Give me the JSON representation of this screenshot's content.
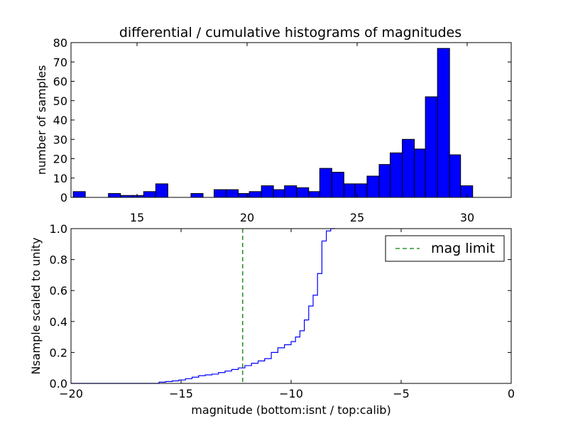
{
  "chart_data": [
    {
      "type": "bar",
      "title": "differential / cumulative histograms of magnitudes",
      "ylabel": "number of samples",
      "xlabel": "",
      "xlim": [
        12,
        32
      ],
      "ylim": [
        0,
        80
      ],
      "xticks": [
        "15",
        "20",
        "25",
        "30"
      ],
      "yticks": [
        "0",
        "10",
        "20",
        "30",
        "40",
        "50",
        "60",
        "70",
        "80"
      ],
      "bar_color": "#0000ff",
      "bins": [
        {
          "x0": 12.1,
          "x1": 12.65,
          "value": 3
        },
        {
          "x0": 13.7,
          "x1": 14.25,
          "value": 2
        },
        {
          "x0": 14.25,
          "x1": 14.8,
          "value": 1
        },
        {
          "x0": 14.8,
          "x1": 15.3,
          "value": 1
        },
        {
          "x0": 15.3,
          "x1": 15.85,
          "value": 3
        },
        {
          "x0": 15.85,
          "x1": 16.4,
          "value": 7
        },
        {
          "x0": 17.45,
          "x1": 18.0,
          "value": 2
        },
        {
          "x0": 18.5,
          "x1": 19.05,
          "value": 4
        },
        {
          "x0": 19.05,
          "x1": 19.6,
          "value": 4
        },
        {
          "x0": 19.6,
          "x1": 20.1,
          "value": 2
        },
        {
          "x0": 20.1,
          "x1": 20.65,
          "value": 3
        },
        {
          "x0": 20.65,
          "x1": 21.2,
          "value": 6
        },
        {
          "x0": 21.2,
          "x1": 21.7,
          "value": 4
        },
        {
          "x0": 21.7,
          "x1": 22.25,
          "value": 6
        },
        {
          "x0": 22.25,
          "x1": 22.8,
          "value": 5
        },
        {
          "x0": 22.8,
          "x1": 23.3,
          "value": 3
        },
        {
          "x0": 23.3,
          "x1": 23.85,
          "value": 15
        },
        {
          "x0": 23.85,
          "x1": 24.4,
          "value": 13
        },
        {
          "x0": 24.4,
          "x1": 24.9,
          "value": 7
        },
        {
          "x0": 24.9,
          "x1": 25.45,
          "value": 7
        },
        {
          "x0": 25.45,
          "x1": 26.0,
          "value": 11
        },
        {
          "x0": 26.0,
          "x1": 26.5,
          "value": 17
        },
        {
          "x0": 26.5,
          "x1": 27.05,
          "value": 23
        },
        {
          "x0": 27.05,
          "x1": 27.6,
          "value": 30
        },
        {
          "x0": 27.6,
          "x1": 28.1,
          "value": 25
        },
        {
          "x0": 28.1,
          "x1": 28.65,
          "value": 52
        },
        {
          "x0": 28.65,
          "x1": 29.2,
          "value": 77
        },
        {
          "x0": 29.2,
          "x1": 29.7,
          "value": 22
        },
        {
          "x0": 29.7,
          "x1": 30.25,
          "value": 6
        }
      ]
    },
    {
      "type": "line",
      "title": "",
      "xlabel": "magnitude (bottom:isnt / top:calib)",
      "ylabel": "Nsample scaled to unity",
      "xlim": [
        -20,
        0
      ],
      "ylim": [
        0.0,
        1.0
      ],
      "xticks": [
        "−20",
        "−15",
        "−10",
        "−5",
        "0"
      ],
      "yticks": [
        "0.0",
        "0.2",
        "0.4",
        "0.6",
        "0.8",
        "1.0"
      ],
      "legend": {
        "position": "top-right",
        "entries": [
          {
            "name": "mag limit",
            "style": "dashed",
            "color": "#008000"
          }
        ]
      },
      "mag_limit_x": -12.2,
      "step_color": "#0000ff",
      "series": [
        {
          "x": [
            -20,
            -16,
            -15.7,
            -15.4,
            -15.1,
            -14.8,
            -14.5,
            -14.2,
            -13.9,
            -13.6,
            -13.3,
            -13.0,
            -12.7,
            -12.4,
            -12.1,
            -11.8,
            -11.5,
            -11.2,
            -10.9,
            -10.6,
            -10.3,
            -10.0,
            -9.8,
            -9.6,
            -9.4,
            -9.2,
            -9.0,
            -8.8,
            -8.6,
            -8.4,
            -8.2,
            -8.0
          ],
          "y": [
            0.0,
            0.008,
            0.012,
            0.016,
            0.022,
            0.03,
            0.04,
            0.05,
            0.055,
            0.06,
            0.07,
            0.08,
            0.09,
            0.1,
            0.115,
            0.13,
            0.145,
            0.16,
            0.2,
            0.23,
            0.25,
            0.27,
            0.3,
            0.34,
            0.41,
            0.5,
            0.57,
            0.71,
            0.92,
            0.985,
            1.0,
            1.0
          ]
        }
      ]
    }
  ]
}
